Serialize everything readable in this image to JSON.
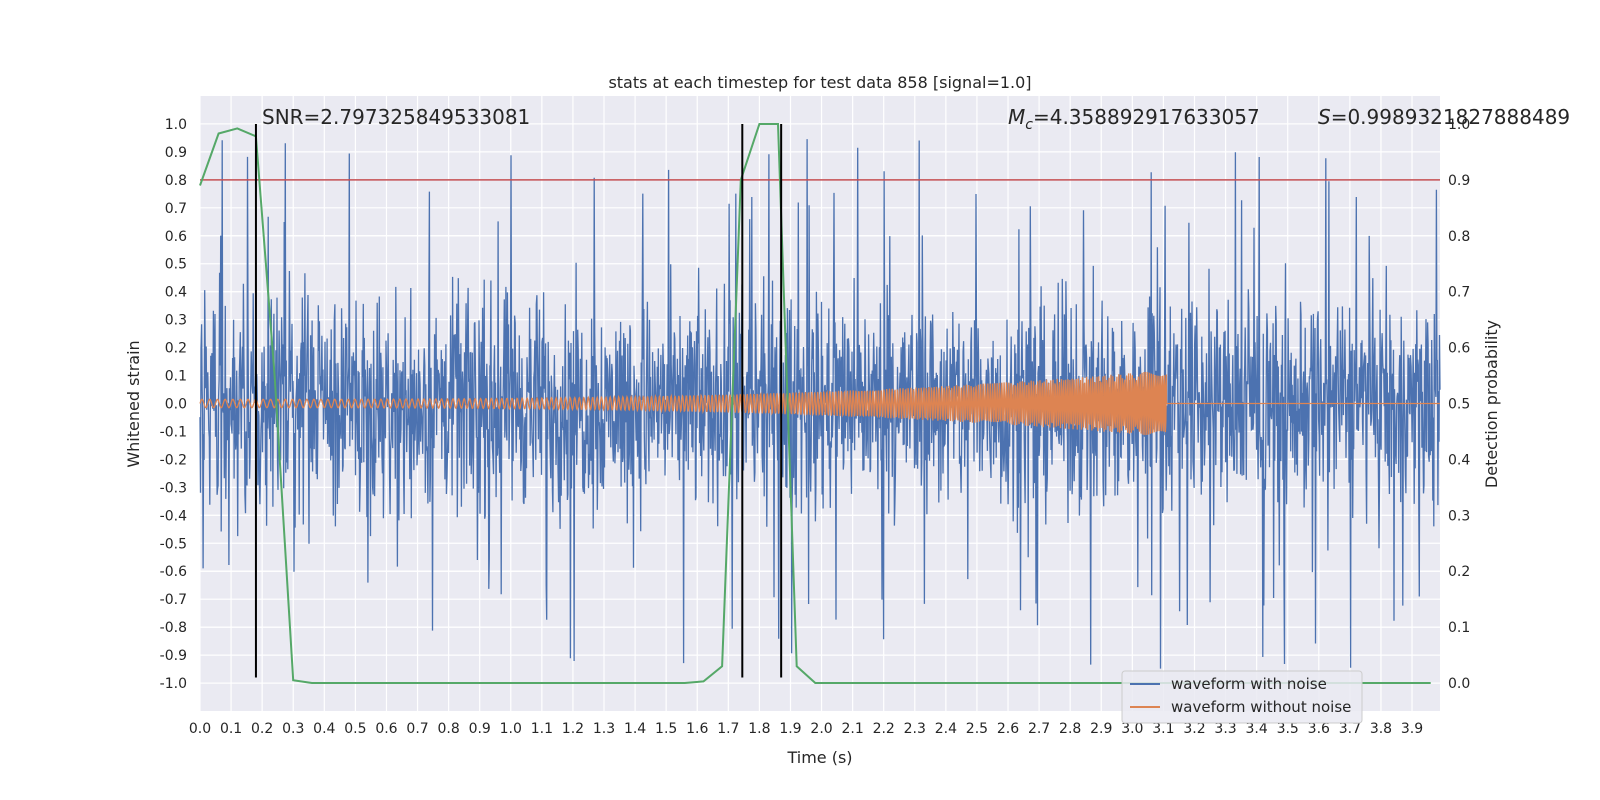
{
  "chart_data": {
    "type": "line",
    "title": "stats at each timestep for test data 858 [signal=1.0]",
    "xlabel": "Time (s)",
    "ylabel": "Whitened strain",
    "y2label": "Detection probability",
    "xlim": [
      0.0,
      3.99
    ],
    "ylim": [
      -1.1,
      1.1
    ],
    "y2lim": [
      -0.05,
      1.05
    ],
    "x_ticks": [
      "0.0",
      "0.1",
      "0.2",
      "0.3",
      "0.4",
      "0.5",
      "0.6",
      "0.7",
      "0.8",
      "0.9",
      "1.0",
      "1.1",
      "1.2",
      "1.3",
      "1.4",
      "1.5",
      "1.6",
      "1.7",
      "1.8",
      "1.9",
      "2.0",
      "2.1",
      "2.2",
      "2.3",
      "2.4",
      "2.5",
      "2.6",
      "2.7",
      "2.8",
      "2.9",
      "3.0",
      "3.1",
      "3.2",
      "3.3",
      "3.4",
      "3.5",
      "3.6",
      "3.7",
      "3.8",
      "3.9"
    ],
    "y_ticks": [
      "1.0",
      "0.9",
      "0.8",
      "0.7",
      "0.6",
      "0.5",
      "0.4",
      "0.3",
      "0.2",
      "0.1",
      "0.0",
      "-0.1",
      "-0.2",
      "-0.3",
      "-0.4",
      "-0.5",
      "-0.6",
      "-0.7",
      "-0.8",
      "-0.9",
      "-1.0"
    ],
    "y2_ticks": [
      "1.0",
      "0.9",
      "0.8",
      "0.7",
      "0.6",
      "0.5",
      "0.4",
      "0.3",
      "0.2",
      "0.1",
      "0.0"
    ],
    "grid": true,
    "legend_position": "lower-right",
    "annotations": {
      "snr": "SNR=2.797325849533081",
      "mc_symbol": "M",
      "mc_sub": "c",
      "mc_value": "=4.358892917633057",
      "s_symbol": "S",
      "s_value": "=0.9989321827888489"
    },
    "series": [
      {
        "name": "waveform with noise",
        "color": "#4c72b0",
        "axis": "left",
        "kind": "noise",
        "amplitude_typical": 0.35,
        "amplitude_peak": 1.0,
        "x_range": [
          0.0,
          3.99
        ]
      },
      {
        "name": "waveform without noise",
        "color": "#dd8452",
        "axis": "left",
        "kind": "chirp",
        "amplitude_start": 0.015,
        "amplitude_end": 0.12,
        "x_range": [
          0.0,
          3.11
        ],
        "flat_after": 3.11
      },
      {
        "name": "",
        "color": "#55a868",
        "axis": "right",
        "x": [
          0.0,
          0.06,
          0.12,
          0.18,
          0.24,
          0.3,
          0.36,
          0.6,
          1.2,
          1.56,
          1.62,
          1.68,
          1.74,
          1.8,
          1.86,
          1.92,
          1.98,
          2.4,
          3.0,
          3.96
        ],
        "y": [
          0.89,
          0.983,
          0.992,
          0.978,
          0.55,
          0.005,
          0.0,
          0.0,
          0.0,
          0.0,
          0.003,
          0.03,
          0.9,
          1.0,
          1.0,
          0.03,
          0.0,
          0.0,
          0.0,
          0.0
        ]
      },
      {
        "name": "",
        "color": "#c44e52",
        "axis": "right",
        "kind": "threshold",
        "y": 0.9
      }
    ],
    "vlines": [
      {
        "x": 0.18,
        "color": "#000000",
        "ylim": [
          -0.98,
          1.0
        ]
      },
      {
        "x": 1.745,
        "color": "#000000",
        "ylim": [
          -0.98,
          1.0
        ]
      },
      {
        "x": 1.87,
        "color": "#000000",
        "ylim": [
          -0.98,
          1.0
        ]
      }
    ]
  }
}
